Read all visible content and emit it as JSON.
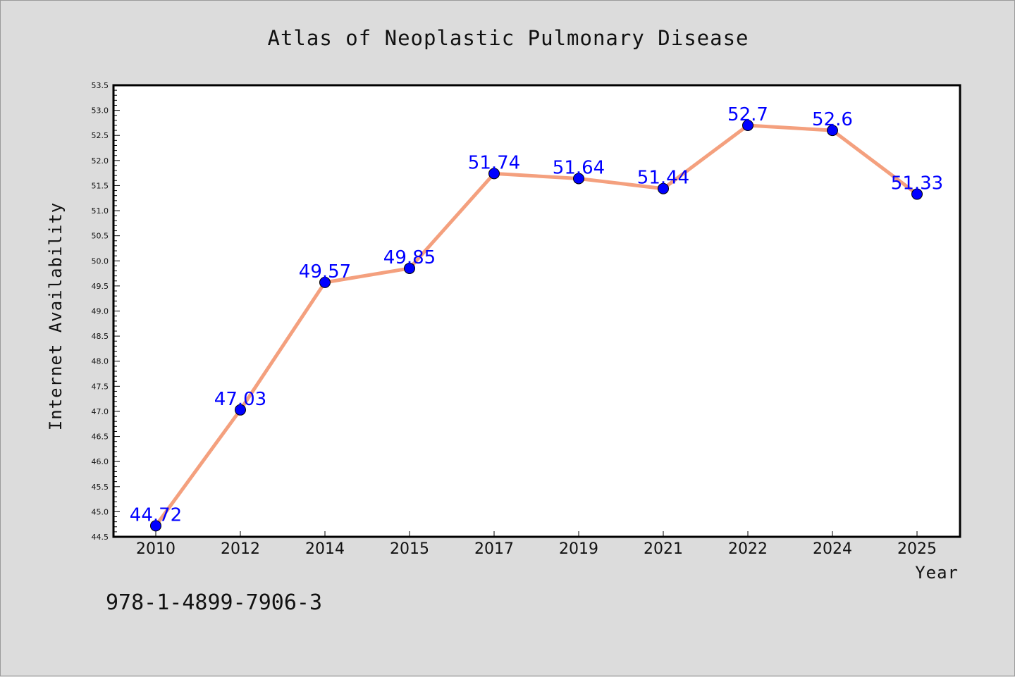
{
  "chart_data": {
    "type": "line",
    "title": "Atlas of Neoplastic Pulmonary Disease",
    "xlabel": "Year",
    "ylabel": "Internet Availability",
    "categories": [
      "2010",
      "2012",
      "2014",
      "2015",
      "2017",
      "2019",
      "2021",
      "2022",
      "2024",
      "2025"
    ],
    "series": [
      {
        "values": [
          44.72,
          47.03,
          49.57,
          49.85,
          51.74,
          51.64,
          51.44,
          52.7,
          52.6,
          51.33
        ],
        "labels": [
          "44.72",
          "47.03",
          "49.57",
          "49.85",
          "51.74",
          "51.64",
          "51.44",
          "52.7",
          "52.6",
          "51.33"
        ],
        "line_color": "#f4a07e",
        "marker_color": "#0000ff"
      }
    ],
    "ylim": [
      44.5,
      53.5
    ],
    "yticks": [
      "44.5",
      "45.0",
      "45.5",
      "46.0",
      "46.5",
      "47.0",
      "47.5",
      "48.0",
      "48.5",
      "49.0",
      "49.5",
      "50.0",
      "50.5",
      "51.0",
      "51.5",
      "52.0",
      "52.5",
      "53.0",
      "53.5"
    ],
    "grid": false,
    "legend": "none"
  },
  "footer": {
    "isbn": "978-1-4899-7906-3"
  },
  "colors": {
    "background": "#dcdcdc",
    "plot_background": "#ffffff",
    "label_color": "#0000ff"
  }
}
